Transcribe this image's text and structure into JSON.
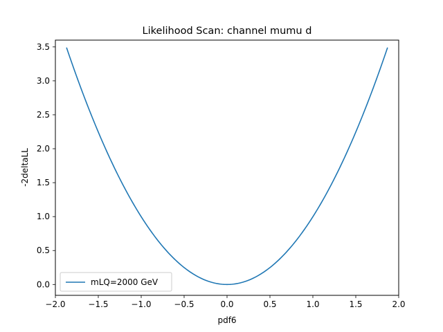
{
  "chart_data": {
    "type": "line",
    "title": "Likelihood Scan: channel mumu d",
    "xlabel": "pdf6",
    "ylabel": "-2deltaLL",
    "xlim": [
      -2.0,
      2.0
    ],
    "ylim": [
      -0.16,
      3.6
    ],
    "x_ticks": [
      "−2.0",
      "−1.5",
      "−1.0",
      "−0.5",
      "0.0",
      "0.5",
      "1.0",
      "1.5",
      "2.0"
    ],
    "x_tick_values": [
      -2.0,
      -1.5,
      -1.0,
      -0.5,
      0.0,
      0.5,
      1.0,
      1.5,
      2.0
    ],
    "y_ticks": [
      "0.0",
      "0.5",
      "1.0",
      "1.5",
      "2.0",
      "2.5",
      "3.0",
      "3.5"
    ],
    "y_tick_values": [
      0.0,
      0.5,
      1.0,
      1.5,
      2.0,
      2.5,
      3.0,
      3.5
    ],
    "legend_position": "lower-left",
    "grid": false,
    "series": [
      {
        "name": "mLQ=2000 GeV",
        "color": "#1f77b4",
        "x": [
          -1.87,
          -1.75,
          -1.5,
          -1.25,
          -1.0,
          -0.75,
          -0.5,
          -0.25,
          0.0,
          0.25,
          0.5,
          0.75,
          1.0,
          1.25,
          1.5,
          1.75,
          1.87
        ],
        "y": [
          3.49,
          3.06,
          2.24,
          1.56,
          1.0,
          0.56,
          0.25,
          0.063,
          0.0,
          0.063,
          0.25,
          0.56,
          1.0,
          1.56,
          2.24,
          3.06,
          3.49
        ]
      }
    ]
  }
}
